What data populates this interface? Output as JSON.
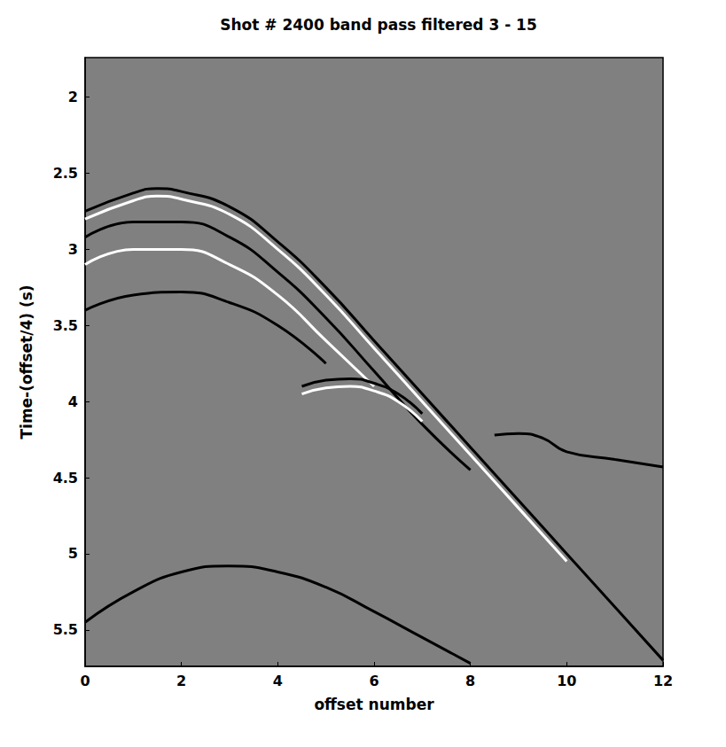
{
  "chart_data": {
    "type": "line",
    "title": "Shot # 2400 band pass filtered 3 - 15",
    "x_label": "offset number",
    "y_label": "Time-(offset/4) (s)",
    "xlim": [
      0,
      12
    ],
    "xticks": [
      0,
      2,
      4,
      6,
      8,
      10,
      12
    ],
    "ylim": [
      1.74,
      5.74
    ],
    "yticks": [
      2,
      2.5,
      3,
      3.5,
      4,
      4.5,
      5,
      5.5
    ],
    "grid": false,
    "line_style": "solid",
    "series": [
      {
        "color": "#000000",
        "x": [
          0,
          1,
          1.5,
          2,
          3,
          4,
          5,
          6,
          7,
          8,
          9,
          10,
          11,
          12
        ],
        "values": [
          2.75,
          2.63,
          2.6,
          2.62,
          2.72,
          2.95,
          3.25,
          3.6,
          3.95,
          4.3,
          4.65,
          5.0,
          5.35,
          5.7
        ]
      },
      {
        "color": "#ffffff",
        "x": [
          0,
          1,
          1.5,
          2,
          3,
          4,
          5,
          6,
          7,
          8,
          9,
          10
        ],
        "values": [
          2.8,
          2.68,
          2.65,
          2.67,
          2.77,
          3.0,
          3.3,
          3.65,
          4.0,
          4.35,
          4.7,
          5.05
        ]
      },
      {
        "color": "#000000",
        "x": [
          0,
          1,
          2,
          3,
          4,
          5,
          6,
          7,
          8
        ],
        "values": [
          2.92,
          2.82,
          2.82,
          2.92,
          3.15,
          3.45,
          3.8,
          4.15,
          4.45
        ]
      },
      {
        "color": "#ffffff",
        "x": [
          0,
          1,
          2,
          3,
          4,
          5,
          6
        ],
        "values": [
          3.1,
          3.0,
          3.0,
          3.1,
          3.3,
          3.6,
          3.9
        ]
      },
      {
        "color": "#000000",
        "x": [
          0,
          1,
          2,
          3,
          4,
          5
        ],
        "values": [
          3.4,
          3.3,
          3.28,
          3.35,
          3.5,
          3.75
        ]
      },
      {
        "color": "#000000",
        "x": [
          4.5,
          5,
          5.5,
          6,
          6.5,
          7
        ],
        "values": [
          3.9,
          3.86,
          3.85,
          3.88,
          3.95,
          4.08
        ]
      },
      {
        "color": "#ffffff",
        "x": [
          4.5,
          5,
          5.5,
          6,
          6.5,
          7
        ],
        "values": [
          3.95,
          3.91,
          3.9,
          3.93,
          4.0,
          4.13
        ]
      },
      {
        "color": "#000000",
        "x": [
          8.5,
          9,
          9.5,
          10,
          11,
          12
        ],
        "values": [
          4.22,
          4.21,
          4.24,
          4.33,
          4.38,
          4.43
        ]
      },
      {
        "color": "#000000",
        "x": [
          0,
          1,
          2,
          3,
          4,
          5,
          6,
          7,
          8
        ],
        "values": [
          5.45,
          5.25,
          5.12,
          5.08,
          5.12,
          5.22,
          5.38,
          5.55,
          5.72
        ]
      }
    ]
  }
}
